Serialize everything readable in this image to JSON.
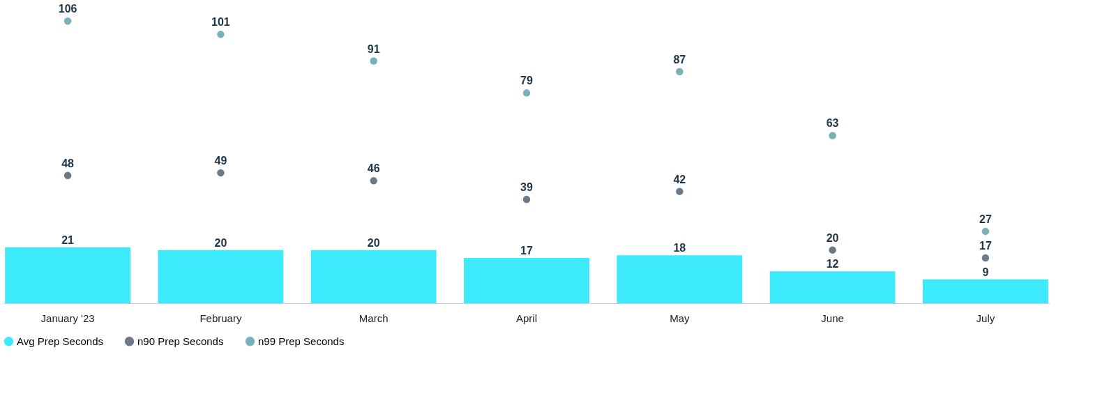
{
  "chart_data": {
    "type": "bar",
    "categories": [
      "January '23",
      "February",
      "March",
      "April",
      "May",
      "June",
      "July"
    ],
    "series": [
      {
        "name": "Avg Prep Seconds",
        "color": "#3deafb",
        "values": [
          21,
          20,
          20,
          17,
          18,
          12,
          9
        ]
      },
      {
        "name": "n90 Prep Seconds",
        "type": "scatter",
        "color": "#6b7a86",
        "values": [
          48,
          49,
          46,
          39,
          42,
          20,
          17
        ]
      },
      {
        "name": "n99 Prep Seconds",
        "type": "scatter",
        "color": "#79b1b8",
        "values": [
          106,
          101,
          91,
          79,
          87,
          63,
          27
        ]
      }
    ],
    "data_labels": true,
    "legend": "bottom",
    "grid": false,
    "marker": "circle"
  }
}
